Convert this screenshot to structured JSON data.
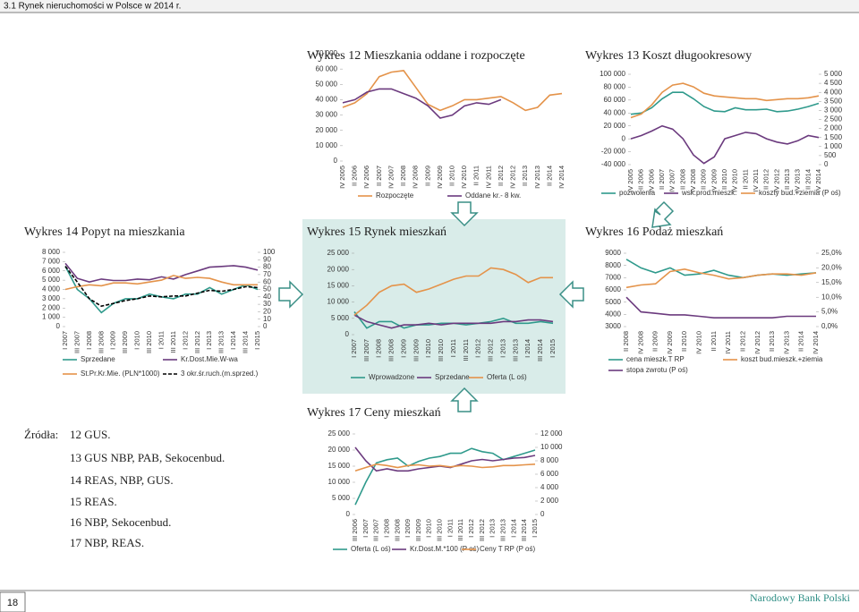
{
  "header": "3.1 Rynek nieruchomości w Polsce w 2014 r.",
  "chart_data": [
    {
      "type": "line",
      "title": "Wykres 12 Mieszkania oddane i rozpoczęte",
      "categories": [
        "IV 2005",
        "II 2006",
        "IV 2006",
        "II 2007",
        "IV 2007",
        "II 2008",
        "IV 2008",
        "II 2009",
        "IV 2009",
        "II 2010",
        "IV 2010",
        "II 2011",
        "IV 2011",
        "II 2012",
        "IV 2012",
        "II 2013",
        "IV 2013",
        "II 2014",
        "IV 2014"
      ],
      "series": [
        {
          "name": "Rozpoczęte",
          "color": "#e4934a",
          "values": [
            35000,
            38000,
            44000,
            55000,
            58000,
            59000,
            48000,
            37000,
            33000,
            36000,
            40000,
            40000,
            41000,
            42000,
            38000,
            33000,
            35000,
            43000,
            44000
          ]
        },
        {
          "name": "Oddane kr.- 8 kw.",
          "color": "#6b3a7e",
          "values": [
            38000,
            40000,
            45000,
            47000,
            47000,
            44000,
            41000,
            36000,
            28000,
            30000,
            36000,
            38000,
            37000,
            40000,
            null,
            null,
            null,
            null,
            null
          ]
        }
      ],
      "ylim": [
        0,
        70000
      ],
      "yticks": [
        0,
        {
          "value": 10000,
          "label": "10 000"
        },
        {
          "value": 20000,
          "label": "20 000"
        },
        {
          "value": 30000,
          "label": "30 000"
        },
        {
          "value": 40000,
          "label": "40 000"
        },
        {
          "value": 50000,
          "label": "50 000"
        },
        {
          "value": 60000,
          "label": "60 000"
        },
        {
          "value": 70000,
          "label": "70 000"
        }
      ]
    },
    {
      "type": "line",
      "title": "Wykres 13 Koszt długookresowy",
      "categories": [
        "IV 2005",
        "II 2006",
        "IV 2006",
        "II 2007",
        "IV 2007",
        "II 2008",
        "IV 2008",
        "II 2009",
        "IV 2009",
        "II 2010",
        "IV 2010",
        "II 2011",
        "IV 2011",
        "II 2012",
        "IV 2012",
        "II 2013",
        "IV 2013",
        "II 2014",
        "IV 2014"
      ],
      "series": [
        {
          "name": "pozwolenia",
          "color": "#2f9a8c",
          "values": [
            38000,
            40000,
            48000,
            62000,
            72000,
            72000,
            62000,
            50000,
            43000,
            42000,
            48000,
            45000,
            45000,
            46000,
            42000,
            43000,
            46000,
            50000,
            55000
          ]
        },
        {
          "name": "wsk.prod.mieszk.",
          "color": "#6b3a7e",
          "values": [
            0,
            5000,
            12000,
            20000,
            15000,
            0,
            -25000,
            -38000,
            -28000,
            0,
            5000,
            10000,
            8000,
            0,
            -5000,
            -8000,
            -3000,
            5000,
            2000
          ]
        },
        {
          "name": "koszty bud.+ziemia (P oś)",
          "color": "#e4934a",
          "axis": "y2",
          "values": [
            2600,
            2800,
            3300,
            4000,
            4400,
            4500,
            4300,
            3950,
            3800,
            3750,
            3700,
            3650,
            3650,
            3550,
            3600,
            3650,
            3650,
            3700,
            3800
          ]
        }
      ],
      "ylim": [
        -40000,
        100000
      ],
      "yticks": [
        {
          "value": -40000,
          "label": "-40 000"
        },
        {
          "value": -20000,
          "label": "-20 000"
        },
        0,
        {
          "value": 20000,
          "label": "20 000"
        },
        {
          "value": 40000,
          "label": "40 000"
        },
        {
          "value": 60000,
          "label": "60 000"
        },
        {
          "value": 80000,
          "label": "80 000"
        },
        {
          "value": 100000,
          "label": "100 000"
        }
      ],
      "y2lim": [
        0,
        5000
      ],
      "y2ticks": [
        0,
        500,
        {
          "value": 1000,
          "label": "1 000"
        },
        {
          "value": 1500,
          "label": "1 500"
        },
        {
          "value": 2000,
          "label": "2 000"
        },
        {
          "value": 2500,
          "label": "2 500"
        },
        {
          "value": 3000,
          "label": "3 000"
        },
        {
          "value": 3500,
          "label": "3 500"
        },
        {
          "value": 4000,
          "label": "4 000"
        },
        {
          "value": 4500,
          "label": "4 500"
        },
        {
          "value": 5000,
          "label": "5 000"
        }
      ]
    },
    {
      "type": "line",
      "title": "Wykres 14 Popyt na mieszkania",
      "categories": [
        "I 2007",
        "III 2007",
        "I 2008",
        "III 2008",
        "I 2009",
        "III 2009",
        "I 2010",
        "III 2010",
        "I 2011",
        "III 2011",
        "I 2012",
        "III 2012",
        "I 2013",
        "III 2013",
        "I 2014",
        "III 2014",
        "I 2015"
      ],
      "series": [
        {
          "name": "Sprzedane",
          "color": "#2f9a8c",
          "values": [
            6500,
            4000,
            3000,
            1500,
            2500,
            3000,
            3000,
            3500,
            3200,
            3000,
            3500,
            3500,
            4200,
            3500,
            4000,
            4500,
            4000
          ]
        },
        {
          "name": "Kr.Dost.Mie.W-wa",
          "color": "#6b3a7e",
          "axis": "y2",
          "values": [
            85,
            65,
            60,
            64,
            62,
            62,
            64,
            63,
            67,
            64,
            70,
            75,
            80,
            81,
            82,
            80,
            76
          ]
        },
        {
          "name": "St.Pr.Kr.Mie. (PLN*1000)",
          "color": "#e4934a",
          "values": [
            4000,
            4300,
            4500,
            4400,
            4700,
            4700,
            4600,
            4800,
            5000,
            5500,
            5200,
            5300,
            5200,
            4800,
            4500,
            4500,
            4500
          ]
        },
        {
          "name": "3 okr.śr.ruch.(m.sprzed.)",
          "color": "#000000",
          "dash": true,
          "values": [
            6500,
            4800,
            3000,
            2200,
            2500,
            2800,
            3000,
            3300,
            3200,
            3300,
            3300,
            3600,
            3900,
            3800,
            4000,
            4300,
            4200
          ]
        }
      ],
      "ylim": [
        0,
        8000
      ],
      "yticks": [
        0,
        {
          "value": 1000,
          "label": "1 000"
        },
        {
          "value": 2000,
          "label": "2 000"
        },
        {
          "value": 3000,
          "label": "3 000"
        },
        {
          "value": 4000,
          "label": "4 000"
        },
        {
          "value": 5000,
          "label": "5 000"
        },
        {
          "value": 6000,
          "label": "6 000"
        },
        {
          "value": 7000,
          "label": "7 000"
        },
        {
          "value": 8000,
          "label": "8 000"
        }
      ],
      "y2lim": [
        0,
        100
      ],
      "y2ticks": [
        0,
        10,
        20,
        30,
        40,
        50,
        60,
        70,
        80,
        90,
        100
      ]
    },
    {
      "type": "line",
      "title": "Wykres 15 Rynek mieszkań",
      "categories": [
        "I 2007",
        "III 2007",
        "I 2008",
        "III 2008",
        "I 2009",
        "III 2009",
        "I 2010",
        "III 2010",
        "I 2011",
        "III 2011",
        "I 2012",
        "III 2012",
        "I 2013",
        "III 2013",
        "I 2014",
        "III 2014",
        "I 2015"
      ],
      "series": [
        {
          "name": "Wprowadzone",
          "color": "#2f9a8c",
          "values": [
            7000,
            2000,
            4000,
            4000,
            2000,
            3000,
            3000,
            3500,
            3500,
            3000,
            3500,
            4000,
            5000,
            3500,
            3500,
            4000,
            3500
          ]
        },
        {
          "name": "Sprzedane",
          "color": "#6b3a7e",
          "values": [
            6000,
            4000,
            3000,
            2000,
            3000,
            3000,
            3500,
            3000,
            3500,
            3500,
            3500,
            3500,
            4000,
            4000,
            4500,
            4500,
            4000
          ]
        },
        {
          "name": "Oferta (L oś)",
          "color": "#e4934a",
          "values": [
            6000,
            9000,
            13000,
            15000,
            15500,
            13000,
            14000,
            15500,
            17000,
            18000,
            18000,
            20500,
            20000,
            18500,
            16000,
            17500,
            17500
          ]
        }
      ],
      "ylim": [
        0,
        25000
      ],
      "yticks": [
        0,
        {
          "value": 5000,
          "label": "5 000"
        },
        {
          "value": 10000,
          "label": "10 000"
        },
        {
          "value": 15000,
          "label": "15 000"
        },
        {
          "value": 20000,
          "label": "20 000"
        },
        {
          "value": 25000,
          "label": "25 000"
        }
      ]
    },
    {
      "type": "line",
      "title": "Wykres 16 Podaż mieszkań",
      "categories": [
        "II 2008",
        "IV 2008",
        "II 2009",
        "IV 2009",
        "II 2010",
        "IV 2010",
        "II 2011",
        "IV 2011",
        "II 2012",
        "IV 2012",
        "II 2013",
        "IV 2013",
        "II 2014",
        "IV 2014"
      ],
      "series": [
        {
          "name": "cena mieszk.T RP",
          "color": "#2f9a8c",
          "values": [
            8500,
            7800,
            7400,
            7800,
            7200,
            7300,
            7600,
            7200,
            7000,
            7200,
            7300,
            7200,
            7300,
            7400
          ]
        },
        {
          "name": "koszt bud.mieszk.+ziemia",
          "color": "#e4934a",
          "values": [
            6200,
            6400,
            6500,
            7500,
            7700,
            7400,
            7200,
            6900,
            7000,
            7200,
            7300,
            7300,
            7200,
            7400
          ]
        },
        {
          "name": "stopa zwrotu (P oś)",
          "color": "#6b3a7e",
          "axis": "y2",
          "values": [
            10,
            5,
            4.5,
            4,
            4,
            3.5,
            3,
            3,
            3,
            3,
            3,
            3.5,
            3.5,
            3.5
          ]
        }
      ],
      "ylim": [
        3000,
        9000
      ],
      "yticks": [
        3000,
        4000,
        5000,
        6000,
        7000,
        8000,
        9000
      ],
      "y2lim": [
        0,
        25
      ],
      "y2ticks": [
        {
          "value": 0,
          "label": "0,0%"
        },
        {
          "value": 5,
          "label": "5,0%"
        },
        {
          "value": 10,
          "label": "10,0%"
        },
        {
          "value": 15,
          "label": "15,0%"
        },
        {
          "value": 20,
          "label": "20,0%"
        },
        {
          "value": 25,
          "label": "25,0%"
        }
      ]
    },
    {
      "type": "line",
      "title": "Wykres 17 Ceny mieszkań",
      "categories": [
        "III 2006",
        "I 2007",
        "III 2007",
        "I 2008",
        "III 2008",
        "I 2009",
        "III 2009",
        "I 2010",
        "III 2010",
        "I 2011",
        "III 2011",
        "I 2012",
        "III 2012",
        "I 2013",
        "III 2013",
        "I 2014",
        "III 2014",
        "I 2015"
      ],
      "series": [
        {
          "name": "Oferta (L oś)",
          "color": "#2f9a8c",
          "values": [
            3000,
            10000,
            16000,
            17000,
            17500,
            15000,
            16500,
            17500,
            18000,
            19000,
            19000,
            20500,
            19500,
            19000,
            17000,
            18000,
            19000,
            20000
          ]
        },
        {
          "name": "Kr.Dost.M.*100 (P oś)",
          "color": "#6b3a7e",
          "axis": "y2",
          "values": [
            10000,
            8000,
            6500,
            6800,
            6500,
            6500,
            6800,
            7000,
            7200,
            7000,
            7500,
            8000,
            8200,
            8000,
            8200,
            8400,
            8500,
            8800
          ]
        },
        {
          "name": "Ceny T RP (P oś)",
          "color": "#e4934a",
          "axis": "y2",
          "values": [
            6500,
            7000,
            7500,
            7300,
            7000,
            7300,
            7400,
            7200,
            7300,
            7100,
            7300,
            7200,
            7000,
            7100,
            7300,
            7300,
            7400,
            7500
          ]
        }
      ],
      "ylim": [
        0,
        25000
      ],
      "yticks": [
        0,
        {
          "value": 5000,
          "label": "5 000"
        },
        {
          "value": 10000,
          "label": "10 000"
        },
        {
          "value": 15000,
          "label": "15 000"
        },
        {
          "value": 20000,
          "label": "20 000"
        },
        {
          "value": 25000,
          "label": "25 000"
        }
      ],
      "y2lim": [
        0,
        12000
      ],
      "y2ticks": [
        0,
        {
          "value": 2000,
          "label": "2 000"
        },
        {
          "value": 4000,
          "label": "4 000"
        },
        {
          "value": 6000,
          "label": "6 000"
        },
        {
          "value": 8000,
          "label": "8 000"
        },
        {
          "value": 10000,
          "label": "10 000"
        },
        {
          "value": 12000,
          "label": "12 000"
        }
      ]
    }
  ],
  "sources": {
    "label": "Źródła:",
    "items": [
      "12 GUS.",
      "13 GUS NBP, PAB, Sekocenbud.",
      "14 REAS, NBP, GUS.",
      "15 REAS.",
      "16 NBP, Sekocenbud.",
      "17 NBP, REAS."
    ]
  },
  "footer": {
    "page": "18",
    "publisher": "Narodowy Bank Polski"
  }
}
